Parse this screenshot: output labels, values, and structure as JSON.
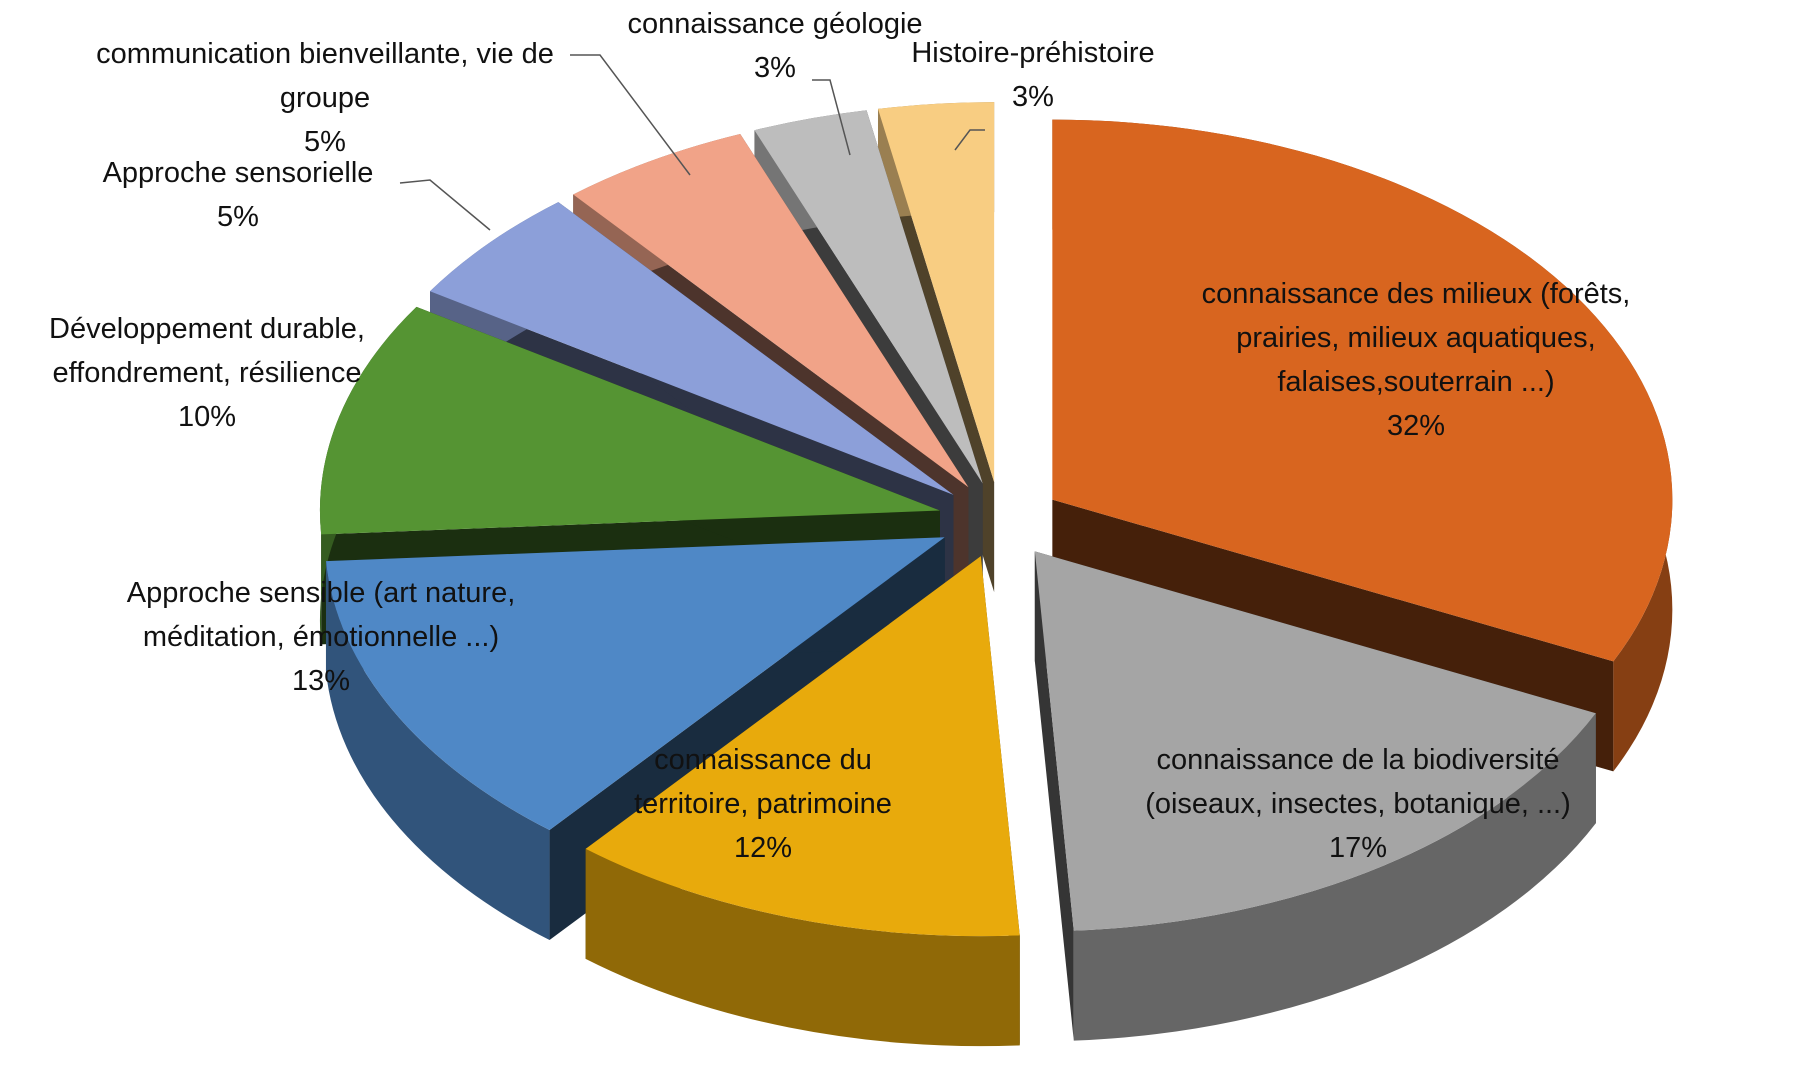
{
  "chart_data": {
    "type": "pie3d",
    "categories": [
      "connaissance des milieux (forêts, prairies, milieux aquatiques, falaises,souterrain ...)",
      "connaissance de la biodiversité  (oiseaux, insectes, botanique, ...)",
      "connaissance du territoire, patrimoine",
      "Approche sensible (art nature, méditation, émotionnelle ...)",
      "Développement durable, effondrement, résilience",
      "Approche sensorielle",
      "communication bienveillante, vie de groupe",
      "connaissance géologie",
      "Histoire-préhistoire"
    ],
    "values": [
      32,
      17,
      12,
      13,
      10,
      5,
      5,
      3,
      3
    ],
    "value_labels": [
      "32%",
      "17%",
      "12%",
      "13%",
      "10%",
      "5%",
      "5%",
      "3%",
      "3%"
    ],
    "colors": [
      "#d8651f",
      "#a5a5a5",
      "#e8aa0c",
      "#4f88c6",
      "#559433",
      "#8c9fd9",
      "#f1a388",
      "#bdbdbd",
      "#f8cd82"
    ]
  }
}
